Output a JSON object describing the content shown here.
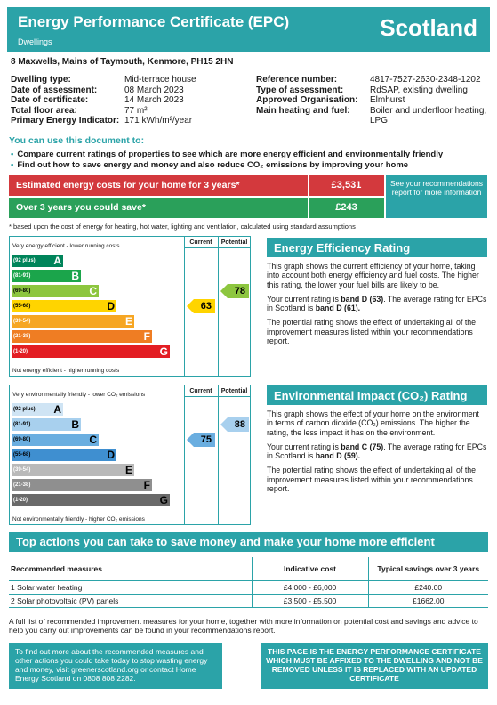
{
  "header": {
    "title": "Energy Performance Certificate (EPC)",
    "subtitle": "Dwellings",
    "country": "Scotland"
  },
  "address": "8 Maxwells, Mains of Taymouth, Kenmore, PH15 2HN",
  "details_left": [
    {
      "label": "Dwelling type:",
      "value": "Mid-terrace house"
    },
    {
      "label": "Date of assessment:",
      "value": "08 March 2023"
    },
    {
      "label": "Date of certificate:",
      "value": "14 March 2023"
    },
    {
      "label": "Total floor area:",
      "value": "77 m²"
    },
    {
      "label": "Primary Energy Indicator:",
      "value": "171 kWh/m²/year"
    }
  ],
  "details_right": [
    {
      "label": "Reference number:",
      "value": "4817-7527-2630-2348-1202"
    },
    {
      "label": "Type of assessment:",
      "value": "RdSAP, existing dwelling"
    },
    {
      "label": "Approved Organisation:",
      "value": "Elmhurst"
    },
    {
      "label": "Main heating and fuel:",
      "value": "Boiler and underfloor heating, LPG"
    }
  ],
  "use_heading": "You can use this document to:",
  "bullets": [
    "Compare current ratings of properties to see which are more energy efficient and environmentally friendly",
    "Find out how to save energy and money and also reduce CO₂ emissions by improving your home"
  ],
  "costs": {
    "estimated_label": "Estimated energy costs for your home for 3 years*",
    "estimated_value": "£3,531",
    "save_label": "Over 3 years you could save*",
    "save_value": "£243",
    "see_box": "See your recommendations report for more information",
    "footnote": "* based upon the cost of energy for heating, hot water, lighting and ventilation, calculated using standard assumptions"
  },
  "efficiency_chart": {
    "top_label": "Very energy efficient - lower running costs",
    "bottom_label": "Not energy efficient - higher running costs",
    "current_head": "Current",
    "potential_head": "Potential",
    "bands": [
      {
        "range": "(92 plus)",
        "letter": "A",
        "color": "#00845a"
      },
      {
        "range": "(81-91)",
        "letter": "B",
        "color": "#1ba54b"
      },
      {
        "range": "(69-80)",
        "letter": "C",
        "color": "#8dc63f"
      },
      {
        "range": "(55-68)",
        "letter": "D",
        "color": "#ffd400"
      },
      {
        "range": "(39-54)",
        "letter": "E",
        "color": "#f6a623"
      },
      {
        "range": "(21-38)",
        "letter": "F",
        "color": "#ef7d23"
      },
      {
        "range": "(1-20)",
        "letter": "G",
        "color": "#e31d23"
      }
    ],
    "current_value": "63",
    "current_band_index": 3,
    "current_color": "#ffd400",
    "potential_value": "78",
    "potential_band_index": 2,
    "potential_color": "#8dc63f"
  },
  "efficiency_text": {
    "heading": "Energy Efficiency Rating",
    "p1": "This graph shows the current efficiency of your home, taking into account both energy efficiency and fuel costs. The higher this rating, the lower your fuel bills are likely to be.",
    "p2_a": "Your current rating is ",
    "p2_b": "band D (63)",
    "p2_c": ". The average rating for EPCs in Scotland is ",
    "p2_d": "band D (61).",
    "p3": "The potential rating shows the effect of undertaking all of the improvement measures listed within your recommendations report."
  },
  "environment_chart": {
    "top_label": "Very environmentally friendly - lower CO₂ emissions",
    "bottom_label": "Not environmentally friendly - higher CO₂ emissions",
    "current_head": "Current",
    "potential_head": "Potential",
    "bands": [
      {
        "range": "(92 plus)",
        "letter": "A",
        "color": "#cfe4f4"
      },
      {
        "range": "(81-91)",
        "letter": "B",
        "color": "#a8d0ee"
      },
      {
        "range": "(69-80)",
        "letter": "C",
        "color": "#6aaee0"
      },
      {
        "range": "(55-68)",
        "letter": "D",
        "color": "#3f8fd0"
      },
      {
        "range": "(39-54)",
        "letter": "E",
        "color": "#b9b9b9"
      },
      {
        "range": "(21-38)",
        "letter": "F",
        "color": "#8f8f8f"
      },
      {
        "range": "(1-20)",
        "letter": "G",
        "color": "#6a6a6a"
      }
    ],
    "current_value": "75",
    "current_band_index": 2,
    "current_color": "#6aaee0",
    "potential_value": "88",
    "potential_band_index": 1,
    "potential_color": "#a8d0ee"
  },
  "environment_text": {
    "heading": "Environmental Impact (CO₂) Rating",
    "p1": "This graph shows the effect of your home on the environment in terms of carbon dioxide (CO₂) emissions. The higher the rating, the less impact it has on the environment.",
    "p2_a": "Your current rating is ",
    "p2_b": "band C (75)",
    "p2_c": ". The average rating for EPCs in Scotland is ",
    "p2_d": "band D (59).",
    "p3": "The potential rating shows the effect of undertaking all of the improvement measures listed within your recommendations report."
  },
  "top_actions": {
    "heading": "Top actions you can take to save money and make your home more efficient",
    "col1": "Recommended measures",
    "col2": "Indicative cost",
    "col3": "Typical savings over 3 years",
    "rows": [
      {
        "measure": "1 Solar water heating",
        "cost": "£4,000 - £6,000",
        "saving": "£240.00"
      },
      {
        "measure": "2 Solar photovoltaic (PV) panels",
        "cost": "£3,500 - £5,500",
        "saving": "£1662.00"
      }
    ]
  },
  "full_list": "A full list of recommended improvement measures for your home, together with more information on potential cost and savings and advice to help you carry out improvements can be found in your recommendations report.",
  "find_box": "To find out more about the recommended measures and other actions you could take today to stop wasting energy and money, visit greenerscotland.org or contact Home Energy Scotland on 0808 808 2282.",
  "page_box": "THIS PAGE IS THE ENERGY PERFORMANCE CERTIFICATE WHICH MUST BE AFFIXED TO THE DWELLING AND NOT BE REMOVED UNLESS IT IS REPLACED WITH AN UPDATED CERTIFICATE"
}
